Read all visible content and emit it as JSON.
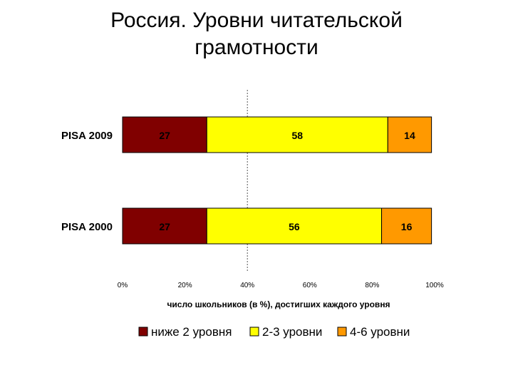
{
  "title_lines": [
    "Россия. Уровни читательской",
    "грамотности"
  ],
  "chart_data": {
    "type": "bar",
    "orientation": "horizontal",
    "stacked": true,
    "title": "Россия. Уровни читательской грамотности",
    "categories": [
      "PISA 2009",
      "PISA 2000"
    ],
    "series": [
      {
        "name": "ниже 2 уровня",
        "values": [
          27,
          27
        ],
        "color": "#800000"
      },
      {
        "name": "2-3 уровни",
        "values": [
          58,
          56
        ],
        "color": "#ffff00"
      },
      {
        "name": "4-6 уровни",
        "values": [
          14,
          16
        ],
        "color": "#ff9900"
      }
    ],
    "xlabel": "число школьников (в %), достигших каждого уровня",
    "xlim": [
      0,
      100
    ],
    "xticks": [
      "0%",
      "20%",
      "40%",
      "60%",
      "80%",
      "100%"
    ],
    "reference_line_x": 40,
    "grid": false,
    "legend_position": "bottom"
  }
}
